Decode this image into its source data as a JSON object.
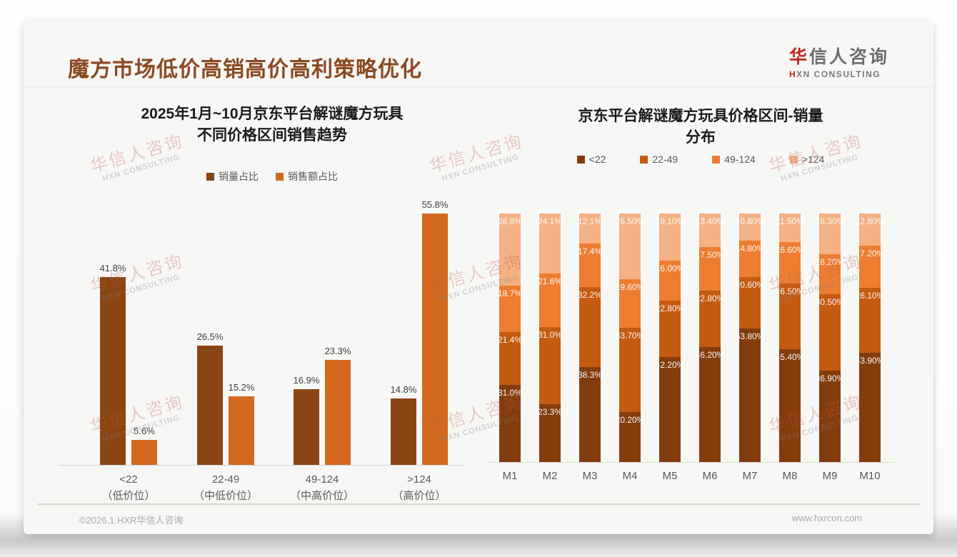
{
  "page": {
    "header": {
      "title": "魔方市场低价高销高价高利策略优化"
    },
    "logo": {
      "zh_highlight": "华",
      "zh_rest": "信人咨询",
      "en_highlight": "H",
      "en_rest": "XN CONSULTING"
    },
    "watermark": {
      "line1": "华信人咨询",
      "line2": "HXN CONSULTING"
    },
    "footer": {
      "copyright": "©2026.1 HXR华信人咨询",
      "website": "www.hxrcon.com"
    }
  },
  "colors": {
    "header_title": "#8b4a21",
    "logo_accent": "#c02a1e",
    "left_series_dark": "#8B4513",
    "left_series_orange": "#D2691E",
    "stack_lt22": "#843C0C",
    "stack_22_49": "#C55A11",
    "stack_49_124": "#ED7D31",
    "stack_gt124": "#F4B183"
  },
  "chart_data": [
    {
      "type": "bar",
      "title_line1": "2025年1月~10月京东平台解谜魔方玩具",
      "title_line2": "不同价格区间销售趋势",
      "legend_position": "top",
      "grid": false,
      "ylim": [
        0,
        56
      ],
      "categories": [
        "<22",
        "22-49",
        "49-124",
        ">124"
      ],
      "category_sublabels": [
        "（低价位）",
        "（中低价位）",
        "（中高价位）",
        "（高价位）"
      ],
      "series": [
        {
          "name": "销量占比",
          "color": "#8B4513",
          "values": [
            41.8,
            26.5,
            16.9,
            14.8
          ],
          "labels": [
            "41.8%",
            "26.5%",
            "16.9%",
            "14.8%"
          ]
        },
        {
          "name": "销售额占比",
          "color": "#D2691E",
          "values": [
            5.6,
            15.2,
            23.3,
            55.8
          ],
          "labels": [
            "5.6%",
            "15.2%",
            "23.3%",
            "55.8%"
          ]
        }
      ]
    },
    {
      "type": "stacked-bar",
      "title_line1": "京东平台解谜魔方玩具价格区间-销量",
      "title_line2": "分布",
      "legend_position": "top",
      "grid": false,
      "ylim": [
        0,
        100
      ],
      "categories": [
        "M1",
        "M2",
        "M3",
        "M4",
        "M5",
        "M6",
        "M7",
        "M8",
        "M9",
        "M10"
      ],
      "series": [
        {
          "name": "<22",
          "color": "#843C0C",
          "values": [
            31.0,
            23.3,
            38.3,
            20.2,
            42.2,
            46.2,
            53.8,
            45.4,
            36.9,
            43.9
          ],
          "labels": [
            "31.0%",
            "23.3%",
            "38.3%",
            "20.20%",
            "42.20%",
            "46.20%",
            "53.80%",
            "45.40%",
            "36.90%",
            "43.90%"
          ]
        },
        {
          "name": "22-49",
          "color": "#C55A11",
          "values": [
            21.4,
            31.0,
            32.2,
            33.7,
            22.8,
            22.8,
            20.6,
            26.5,
            30.5,
            26.1
          ],
          "labels": [
            "21.4%",
            "31.0%",
            "32.2%",
            "33.70%",
            "22.80%",
            "22.80%",
            "20.60%",
            "26.50%",
            "30.50%",
            "26.10%"
          ]
        },
        {
          "name": "49-124",
          "color": "#ED7D31",
          "values": [
            18.7,
            21.6,
            17.4,
            19.6,
            16.0,
            17.5,
            14.8,
            16.6,
            16.2,
            17.2
          ],
          "labels": [
            "18.7%",
            "21.6%",
            "17.4%",
            "19.60%",
            "16.00%",
            "17.50%",
            "14.80%",
            "16.60%",
            "16.20%",
            "17.20%"
          ]
        },
        {
          "name": ">124",
          "color": "#F4B183",
          "values": [
            28.8,
            24.1,
            12.1,
            26.5,
            19.1,
            13.4,
            10.8,
            11.5,
            16.3,
            12.8
          ],
          "labels": [
            "28.8%",
            "24.1%",
            "12.1%",
            "26.50%",
            "19.10%",
            "13.40%",
            "10.80%",
            "11.50%",
            "16.30%",
            "12.80%"
          ]
        }
      ]
    }
  ]
}
